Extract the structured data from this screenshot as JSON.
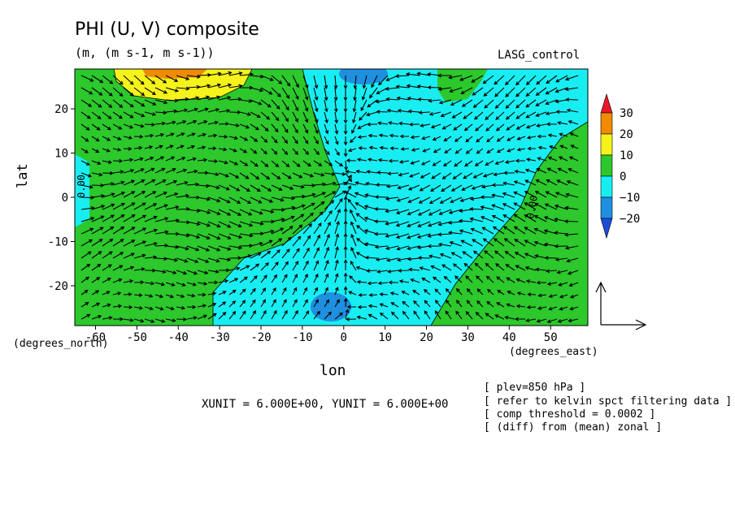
{
  "chart_data": {
    "type": "contour-vector",
    "title": "PHI (U, V) composite",
    "units": "(m, (m s-1, m s-1))",
    "run_label": "LASG_control",
    "xlabel": "lon",
    "ylabel": "lat",
    "x_unit_label": "(degrees_east)",
    "y_unit_label": "(degrees_north)",
    "xlim": [
      -65,
      59
    ],
    "ylim": [
      -29,
      29
    ],
    "x_ticks": [
      -60,
      -50,
      -40,
      -30,
      -20,
      -10,
      0,
      10,
      20,
      30,
      40,
      50
    ],
    "y_ticks": [
      -20,
      -10,
      0,
      10,
      20
    ],
    "colorbar": {
      "levels": [
        -20,
        -10,
        0,
        10,
        20,
        30
      ],
      "labels": [
        "30",
        "20",
        "10",
        "0",
        "−10",
        "−20"
      ],
      "colors": [
        "#e8182a",
        "#f08a00",
        "#f5f21c",
        "#2cc82c",
        "#18eef2",
        "#1f8fe0",
        "#1c4ed8"
      ]
    },
    "contour_labels": [
      "0.00",
      "0.00"
    ],
    "vector_ref": {
      "xunit": 6.0,
      "yunit": 6.0
    },
    "vector_ref_text": "XUNIT = 6.000E+00, YUNIT = 6.000E+00",
    "info": [
      "[ plev=850 hPa ]",
      "[ refer to kelvin spct filtering data ]",
      "[ comp threshold = 0.0002 ]",
      "[ (diff) from (mean) zonal ]"
    ]
  }
}
